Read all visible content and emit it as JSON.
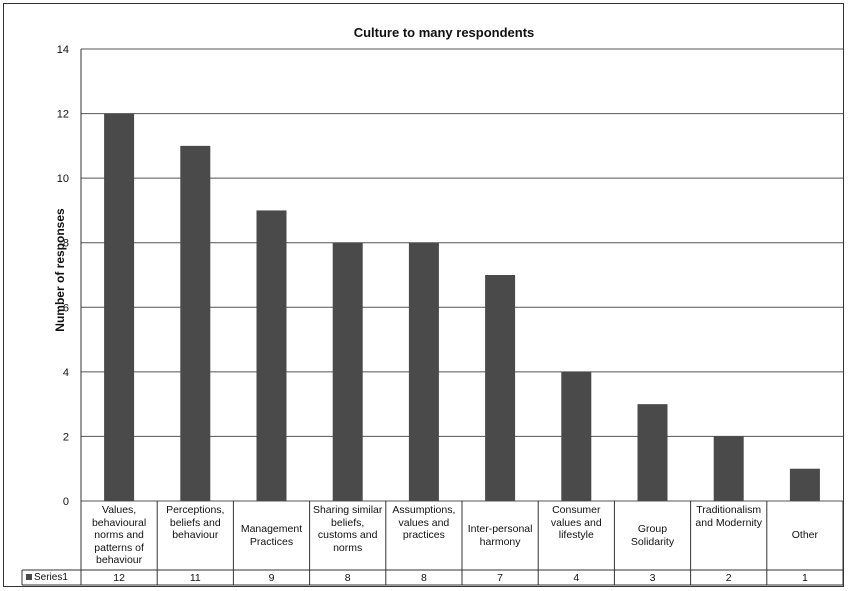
{
  "chart_data": {
    "type": "bar",
    "title": "Culture to many respondents",
    "ylabel": "Number of responses",
    "xlabel": "",
    "ylim": [
      0,
      14
    ],
    "yticks": [
      0,
      2,
      4,
      6,
      8,
      10,
      12,
      14
    ],
    "grid": true,
    "legend": "table-left",
    "bar_color": "#4a4a4a",
    "categories": [
      "Values, behavioural norms and patterns of behaviour",
      "Perceptions, beliefs and behaviour",
      "Management Practices",
      "Sharing similar beliefs, customs and norms",
      "Assumptions, values and practices",
      "Inter-personal harmony",
      "Consumer values and lifestyle",
      "Group Solidarity",
      "Traditionalism and Modernity",
      "Other"
    ],
    "series": [
      {
        "name": "Series1",
        "values": [
          12,
          11,
          9,
          8,
          8,
          7,
          4,
          3,
          2,
          1
        ]
      }
    ]
  }
}
